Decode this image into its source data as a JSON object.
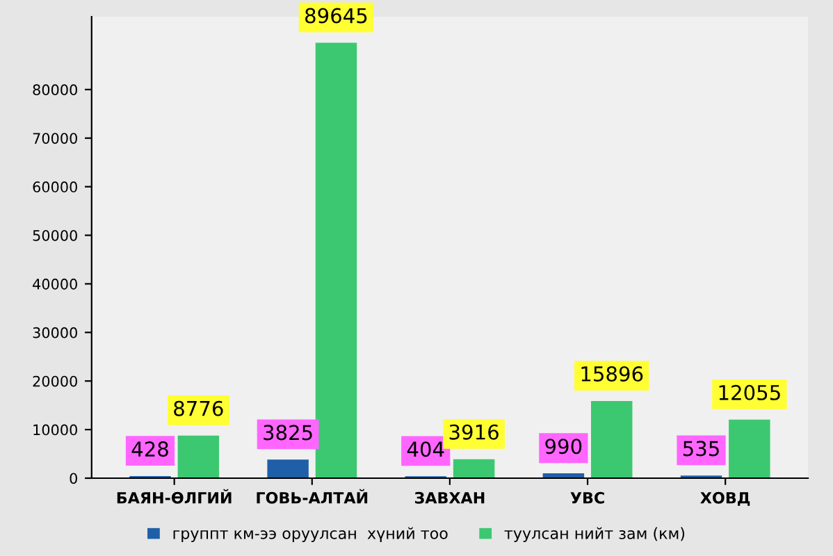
{
  "chart_data": {
    "type": "bar",
    "categories": [
      "БАЯН-ӨЛГИЙ",
      "ГОВЬ-АЛТАЙ",
      "ЗАВХАН",
      "УВС",
      "ХОВД"
    ],
    "series": [
      {
        "name": "группт км-ээ оруулсан  хүний тоо",
        "color": "#1f5fa8",
        "values": [
          428,
          3825,
          404,
          990,
          535
        ]
      },
      {
        "name": "туулсан нийт зам (км)",
        "color": "#3cc870",
        "values": [
          8776,
          89645,
          3916,
          15896,
          12055
        ]
      }
    ],
    "ylim": [
      0,
      95000
    ],
    "yticks": [
      0,
      10000,
      20000,
      30000,
      40000,
      50000,
      60000,
      70000,
      80000
    ],
    "data_labels": true,
    "legend": "bottom",
    "grid": false
  }
}
